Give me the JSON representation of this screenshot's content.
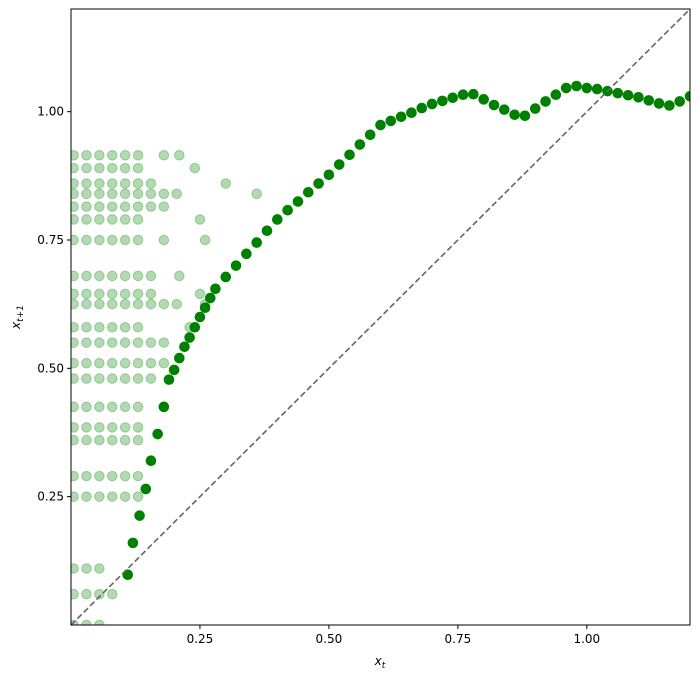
{
  "chart_data": {
    "type": "scatter",
    "xlabel": {
      "base": "x",
      "sub": "t"
    },
    "ylabel": {
      "base": "x",
      "sub": "t+1"
    },
    "xlim": [
      0,
      1.2
    ],
    "ylim": [
      0,
      1.2
    ],
    "xticks": [
      0.25,
      {
        "value": 0.5,
        "label": "0.50"
      },
      0.75,
      {
        "value": 1,
        "label": "1.00"
      }
    ],
    "yticks": [
      0.25,
      {
        "value": 0.5,
        "label": "0.50"
      },
      0.75,
      {
        "value": 1,
        "label": "1.00"
      }
    ],
    "identity_line": {
      "color": "#666666",
      "dashed": true
    },
    "series": [
      {
        "color": "#008000",
        "alpha": 0.3,
        "x": [
          0.005,
          0.03,
          0.055,
          0.08,
          0.105,
          0.13,
          0.18,
          0.21,
          0.005,
          0.03,
          0.055,
          0.08,
          0.105,
          0.13,
          0.24,
          0.005,
          0.03,
          0.055,
          0.08,
          0.105,
          0.13,
          0.155,
          0.3,
          0.005,
          0.03,
          0.055,
          0.08,
          0.105,
          0.13,
          0.155,
          0.18,
          0.205,
          0.36,
          0.005,
          0.03,
          0.055,
          0.08,
          0.105,
          0.13,
          0.155,
          0.18,
          0.005,
          0.03,
          0.055,
          0.08,
          0.105,
          0.13,
          0.25,
          0.005,
          0.03,
          0.055,
          0.08,
          0.105,
          0.13,
          0.18,
          0.26,
          0.005,
          0.03,
          0.055,
          0.08,
          0.105,
          0.13,
          0.155,
          0.21,
          0.005,
          0.03,
          0.055,
          0.08,
          0.105,
          0.13,
          0.155,
          0.25,
          0.005,
          0.03,
          0.055,
          0.08,
          0.105,
          0.13,
          0.155,
          0.18,
          0.205,
          0.26,
          0.005,
          0.03,
          0.055,
          0.08,
          0.105,
          0.13,
          0.23,
          0.005,
          0.03,
          0.055,
          0.08,
          0.105,
          0.13,
          0.155,
          0.18,
          0.005,
          0.03,
          0.055,
          0.08,
          0.105,
          0.13,
          0.155,
          0.18,
          0.005,
          0.03,
          0.055,
          0.08,
          0.105,
          0.13,
          0.155,
          0.005,
          0.03,
          0.055,
          0.08,
          0.105,
          0.13,
          0.005,
          0.03,
          0.055,
          0.08,
          0.105,
          0.13,
          0.005,
          0.03,
          0.055,
          0.08,
          0.105,
          0.13,
          0.005,
          0.03,
          0.055,
          0.08,
          0.105,
          0.13,
          0.005,
          0.03,
          0.055,
          0.08,
          0.105,
          0.13,
          0.005,
          0.03,
          0.055,
          0.005,
          0.03,
          0.055,
          0.08,
          0.005,
          0.03,
          0.055
        ],
        "values": [
          0.915,
          0.915,
          0.915,
          0.915,
          0.915,
          0.915,
          0.915,
          0.915,
          0.89,
          0.89,
          0.89,
          0.89,
          0.89,
          0.89,
          0.89,
          0.86,
          0.86,
          0.86,
          0.86,
          0.86,
          0.86,
          0.86,
          0.86,
          0.84,
          0.84,
          0.84,
          0.84,
          0.84,
          0.84,
          0.84,
          0.84,
          0.84,
          0.84,
          0.815,
          0.815,
          0.815,
          0.815,
          0.815,
          0.815,
          0.815,
          0.815,
          0.79,
          0.79,
          0.79,
          0.79,
          0.79,
          0.79,
          0.79,
          0.75,
          0.75,
          0.75,
          0.75,
          0.75,
          0.75,
          0.75,
          0.75,
          0.68,
          0.68,
          0.68,
          0.68,
          0.68,
          0.68,
          0.68,
          0.68,
          0.645,
          0.645,
          0.645,
          0.645,
          0.645,
          0.645,
          0.645,
          0.645,
          0.625,
          0.625,
          0.625,
          0.625,
          0.625,
          0.625,
          0.625,
          0.625,
          0.625,
          0.625,
          0.58,
          0.58,
          0.58,
          0.58,
          0.58,
          0.58,
          0.58,
          0.55,
          0.55,
          0.55,
          0.55,
          0.55,
          0.55,
          0.55,
          0.55,
          0.51,
          0.51,
          0.51,
          0.51,
          0.51,
          0.51,
          0.51,
          0.51,
          0.48,
          0.48,
          0.48,
          0.48,
          0.48,
          0.48,
          0.48,
          0.425,
          0.425,
          0.425,
          0.425,
          0.425,
          0.425,
          0.385,
          0.385,
          0.385,
          0.385,
          0.385,
          0.385,
          0.36,
          0.36,
          0.36,
          0.36,
          0.36,
          0.36,
          0.29,
          0.29,
          0.29,
          0.29,
          0.29,
          0.29,
          0.25,
          0.25,
          0.25,
          0.25,
          0.25,
          0.25,
          0.11,
          0.11,
          0.11,
          0.06,
          0.06,
          0.06,
          0.06,
          0,
          0,
          0
        ]
      },
      {
        "color": "#008000",
        "alpha": 1,
        "x": [
          0.11,
          0.12,
          0.133,
          0.145,
          0.155,
          0.168,
          0.18,
          0.19,
          0.2,
          0.21,
          0.22,
          0.23,
          0.24,
          0.25,
          0.26,
          0.27,
          0.28,
          0.3,
          0.32,
          0.34,
          0.36,
          0.38,
          0.4,
          0.42,
          0.44,
          0.46,
          0.48,
          0.5,
          0.52,
          0.54,
          0.56,
          0.58,
          0.6,
          0.62,
          0.64,
          0.66,
          0.68,
          0.7,
          0.72,
          0.74,
          0.76,
          0.78,
          0.8,
          0.82,
          0.84,
          0.86,
          0.88,
          0.9,
          0.92,
          0.94,
          0.96,
          0.98,
          1.0,
          1.02,
          1.04,
          1.06,
          1.08,
          1.1,
          1.12,
          1.14,
          1.16,
          1.18,
          1.2
        ],
        "values": [
          0.098,
          0.16,
          0.213,
          0.265,
          0.32,
          0.372,
          0.425,
          0.478,
          0.497,
          0.52,
          0.542,
          0.56,
          0.58,
          0.6,
          0.618,
          0.637,
          0.655,
          0.678,
          0.7,
          0.723,
          0.745,
          0.768,
          0.79,
          0.808,
          0.825,
          0.843,
          0.86,
          0.877,
          0.897,
          0.916,
          0.936,
          0.955,
          0.974,
          0.982,
          0.99,
          0.998,
          1.007,
          1.015,
          1.021,
          1.027,
          1.033,
          1.034,
          1.024,
          1.013,
          1.004,
          0.994,
          0.992,
          1.006,
          1.02,
          1.033,
          1.046,
          1.05,
          1.046,
          1.044,
          1.04,
          1.036,
          1.032,
          1.028,
          1.022,
          1.016,
          1.012,
          1.02,
          1.03
        ]
      }
    ]
  }
}
